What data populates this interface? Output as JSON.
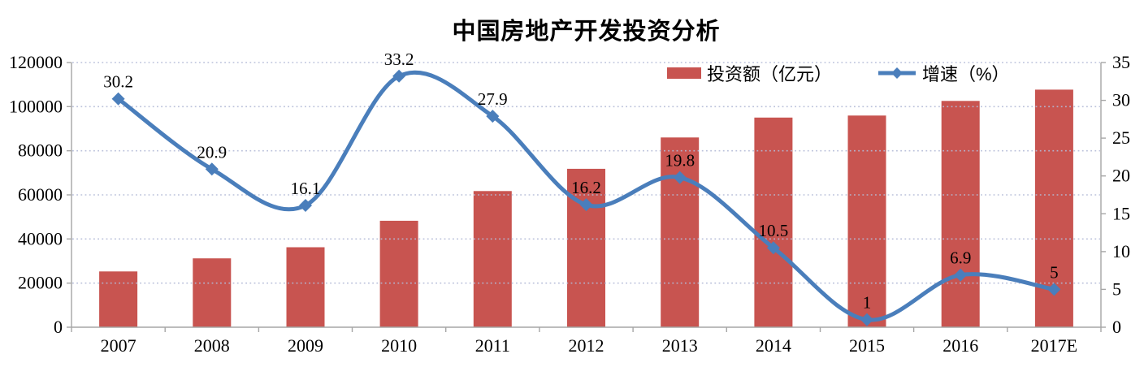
{
  "chart_data": {
    "type": "bar",
    "subtype": "combo-bar-line-dual-axis",
    "title": "中国房地产开发投资分析",
    "categories": [
      "2007",
      "2008",
      "2009",
      "2010",
      "2011",
      "2012",
      "2013",
      "2014",
      "2015",
      "2016",
      "2017E"
    ],
    "series": [
      {
        "name": "投资额（亿元）",
        "type": "bar",
        "axis": "left",
        "color": "#C85450",
        "values": [
          25280,
          31203,
          36242,
          48267,
          61740,
          71804,
          86013,
          95036,
          95979,
          102581,
          107710
        ]
      },
      {
        "name": "增速（%）",
        "type": "line",
        "axis": "right",
        "color": "#4A7EBB",
        "smooth": true,
        "marker": "diamond",
        "values": [
          30.2,
          20.9,
          16.1,
          33.2,
          27.9,
          16.2,
          19.8,
          10.5,
          1,
          6.9,
          5
        ]
      }
    ],
    "left_axis": {
      "min": 0,
      "max": 120000,
      "step": 20000,
      "ticks": [
        "0",
        "20000",
        "40000",
        "60000",
        "80000",
        "100000",
        "120000"
      ]
    },
    "right_axis": {
      "min": 0,
      "max": 35,
      "step": 5,
      "ticks": [
        "0",
        "5",
        "10",
        "15",
        "20",
        "25",
        "30",
        "35"
      ]
    },
    "grid": {
      "horizontal": true,
      "style": "dotted",
      "color": "#B4BBD8"
    },
    "axis_color": "#A6A6A6",
    "text_color": "#000000",
    "legend_position": "top-right-inside",
    "background": "#ffffff"
  }
}
